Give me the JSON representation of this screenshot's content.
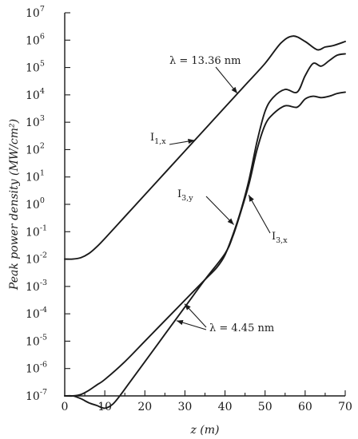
{
  "chart_data": {
    "type": "line",
    "xlabel": "z (m)",
    "ylabel": "Peak power density (MW/cm²)",
    "xlim": [
      0,
      70
    ],
    "ylim_log10": [
      -7,
      7
    ],
    "y_scale": "log",
    "grid": false,
    "x_ticks": [
      "0",
      "10",
      "20",
      "30",
      "40",
      "50",
      "60",
      "70"
    ],
    "y_ticks": [
      {
        "base": "10",
        "exp": "7"
      },
      {
        "base": "10",
        "exp": "6"
      },
      {
        "base": "10",
        "exp": "5"
      },
      {
        "base": "10",
        "exp": "4"
      },
      {
        "base": "10",
        "exp": "3"
      },
      {
        "base": "10",
        "exp": "2"
      },
      {
        "base": "10",
        "exp": "1"
      },
      {
        "base": "10",
        "exp": "0"
      },
      {
        "base": "10",
        "exp": "-1"
      },
      {
        "base": "10",
        "exp": "-2"
      },
      {
        "base": "10",
        "exp": "-3"
      },
      {
        "base": "10",
        "exp": "-4"
      },
      {
        "base": "10",
        "exp": "-5"
      },
      {
        "base": "10",
        "exp": "-6"
      },
      {
        "base": "10",
        "exp": "-7"
      }
    ],
    "series": [
      {
        "name": "I1,x",
        "x": [
          0,
          2,
          4,
          6,
          8,
          10,
          15,
          20,
          25,
          30,
          35,
          40,
          45,
          50,
          54,
          57,
          60,
          63,
          65,
          67,
          70
        ],
        "log10y": [
          -2.0,
          -2.0,
          -1.95,
          -1.8,
          -1.55,
          -1.25,
          -0.45,
          0.35,
          1.15,
          1.95,
          2.75,
          3.55,
          4.35,
          5.15,
          5.9,
          6.15,
          5.95,
          5.65,
          5.75,
          5.8,
          5.95
        ]
      },
      {
        "name": "I3,y",
        "x": [
          0,
          2,
          4,
          6,
          8,
          10,
          15,
          20,
          25,
          30,
          35,
          38,
          40,
          42,
          44,
          46,
          48,
          50,
          52,
          55,
          58,
          60,
          62,
          64,
          66,
          68,
          70
        ],
        "log10y": [
          -7.0,
          -7.0,
          -6.95,
          -6.8,
          -6.6,
          -6.4,
          -5.75,
          -5.0,
          -4.25,
          -3.5,
          -2.75,
          -2.3,
          -1.85,
          -1.1,
          -0.2,
          0.9,
          2.3,
          3.4,
          3.9,
          4.2,
          4.1,
          4.7,
          5.15,
          5.05,
          5.25,
          5.45,
          5.5
        ]
      },
      {
        "name": "I3,x",
        "x": [
          0,
          2,
          4,
          6,
          8,
          10,
          12,
          14,
          16,
          20,
          25,
          30,
          35,
          40,
          42,
          44,
          46,
          48,
          50,
          52,
          55,
          58,
          60,
          62,
          64,
          66,
          68,
          70
        ],
        "log10y": [
          -7.0,
          -7.0,
          -7.1,
          -7.25,
          -7.35,
          -7.45,
          -7.3,
          -6.95,
          -6.55,
          -5.75,
          -4.75,
          -3.75,
          -2.75,
          -1.8,
          -1.15,
          -0.25,
          0.75,
          2.0,
          2.9,
          3.3,
          3.6,
          3.55,
          3.85,
          3.95,
          3.9,
          3.95,
          4.05,
          4.1
        ]
      }
    ],
    "annotations": [
      {
        "id": "lambda1",
        "text": "λ = 13.36 nm",
        "points_to_series": "I1,x"
      },
      {
        "id": "i1x",
        "text_main": "I",
        "text_sub": "1,x",
        "points_to_series": "I1,x"
      },
      {
        "id": "i3y",
        "text_main": "I",
        "text_sub": "3,y",
        "points_to_series": "I3,y"
      },
      {
        "id": "i3x",
        "text_main": "I",
        "text_sub": "3,x",
        "points_to_series": "I3,x"
      },
      {
        "id": "lambda2",
        "text": "λ = 4.45 nm",
        "points_to_series": [
          "I3,y",
          "I3,x"
        ]
      }
    ]
  }
}
